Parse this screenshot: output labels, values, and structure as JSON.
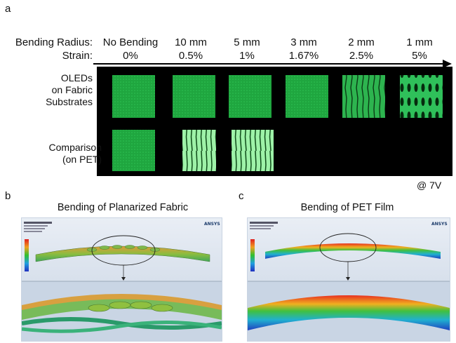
{
  "panel_a": {
    "letter": "a",
    "bending_radius_label": "Bending Radius:",
    "strain_label": "Strain:",
    "columns": [
      {
        "radius": "No Bending",
        "strain": "0%"
      },
      {
        "radius": "10 mm",
        "strain": "0.5%"
      },
      {
        "radius": "5 mm",
        "strain": "1%"
      },
      {
        "radius": "3 mm",
        "strain": "1.67%"
      },
      {
        "radius": "2 mm",
        "strain": "2.5%"
      },
      {
        "radius": "1 mm",
        "strain": "5%"
      }
    ],
    "row1_label": [
      "OLEDs",
      "on Fabric",
      "Substrates"
    ],
    "row2_label": [
      "Comparison",
      "(on PET)"
    ],
    "voltage": "@ 7V",
    "glow_color": "#22b84a"
  },
  "panel_b": {
    "letter": "b",
    "title": "Bending of Planarized Fabric",
    "software": "ANSYS"
  },
  "panel_c": {
    "letter": "c",
    "title": "Bending of PET Film",
    "software": "ANSYS"
  }
}
